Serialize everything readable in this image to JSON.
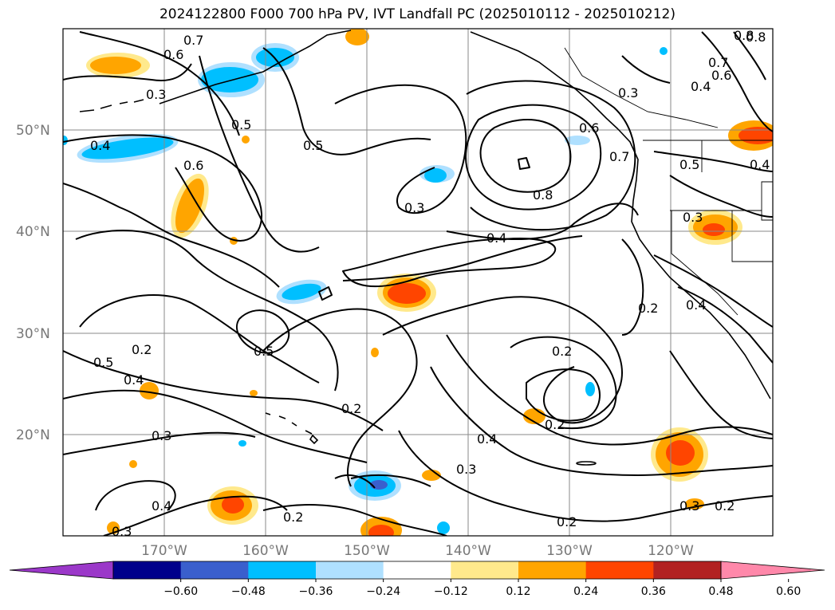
{
  "title": "2024122800 F000 700 hPa PV, IVT Landfall PC (2025010112 - 2025010212)",
  "lat_labels": [
    "50°N",
    "40°N",
    "30°N",
    "20°N"
  ],
  "lon_labels": [
    "170°W",
    "160°W",
    "150°W",
    "140°W",
    "130°W",
    "120°W"
  ],
  "contour_labels": [
    "0.7",
    "0.6",
    "0.3",
    "0.4",
    "0.5",
    "0.6",
    "0.5",
    "0.3",
    "0.8",
    "0.4",
    "0.3",
    "0.6",
    "0.7",
    "0.5",
    "0.3",
    "0.8",
    "0.7",
    "0.4",
    "0.4",
    "0.2",
    "0.2",
    "0.5",
    "0.4",
    "0.5",
    "0.2",
    "0.2",
    "0.2",
    "0.3",
    "0.4",
    "0.3",
    "0.4",
    "0.2",
    "0.2",
    "0.3",
    "0.2",
    "0.3",
    "0.8",
    "0.6",
    "0.4"
  ],
  "colorbar": {
    "colors": [
      "#9b38c9",
      "#00008b",
      "#3a5fcd",
      "#00bfff",
      "#afe0ff",
      "#ffffff",
      "#ffe98c",
      "#ffa500",
      "#ff4500",
      "#b22222",
      "#ff88aa"
    ],
    "ticks": [
      "−0.60",
      "−0.48",
      "−0.36",
      "−0.24",
      "−0.12",
      "0.12",
      "0.24",
      "0.36",
      "0.48",
      "0.60"
    ]
  }
}
